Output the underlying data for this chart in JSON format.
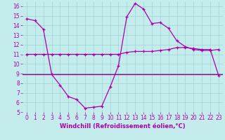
{
  "xlabel": "Windchill (Refroidissement éolien,°C)",
  "xlim": [
    -0.5,
    23.5
  ],
  "ylim": [
    5,
    16.5
  ],
  "yticks": [
    5,
    6,
    7,
    8,
    9,
    10,
    11,
    12,
    13,
    14,
    15,
    16
  ],
  "xticks": [
    0,
    1,
    2,
    3,
    4,
    5,
    6,
    7,
    8,
    9,
    10,
    11,
    12,
    13,
    14,
    15,
    16,
    17,
    18,
    19,
    20,
    21,
    22,
    23
  ],
  "bg_color": "#c4ecec",
  "grid_color": "#9dd4d4",
  "line_color": "#aa00aa",
  "hline_color": "#880088",
  "temp_x": [
    0,
    1,
    2,
    3,
    4,
    5,
    6,
    7,
    8,
    9,
    10,
    11,
    12,
    13,
    14,
    15,
    16,
    17,
    18,
    19,
    20,
    21,
    22,
    23
  ],
  "temp_y": [
    14.7,
    14.5,
    13.6,
    8.9,
    7.8,
    6.6,
    6.3,
    5.4,
    5.5,
    5.6,
    7.6,
    9.8,
    14.9,
    16.3,
    15.7,
    14.2,
    14.3,
    13.7,
    12.4,
    11.8,
    11.5,
    11.4,
    11.4,
    11.5
  ],
  "wind_x": [
    0,
    1,
    2,
    3,
    4,
    5,
    6,
    7,
    8,
    9,
    10,
    11,
    12,
    13,
    14,
    15,
    16,
    17,
    18,
    19,
    20,
    21,
    22,
    23
  ],
  "wind_y": [
    11.0,
    11.0,
    11.0,
    11.0,
    11.0,
    11.0,
    11.0,
    11.0,
    11.0,
    11.0,
    11.0,
    11.0,
    11.2,
    11.3,
    11.3,
    11.3,
    11.4,
    11.5,
    11.7,
    11.7,
    11.6,
    11.5,
    11.5,
    8.8
  ],
  "hline_y": 8.9,
  "tick_fontsize": 5.5,
  "xlabel_fontsize": 6.0
}
